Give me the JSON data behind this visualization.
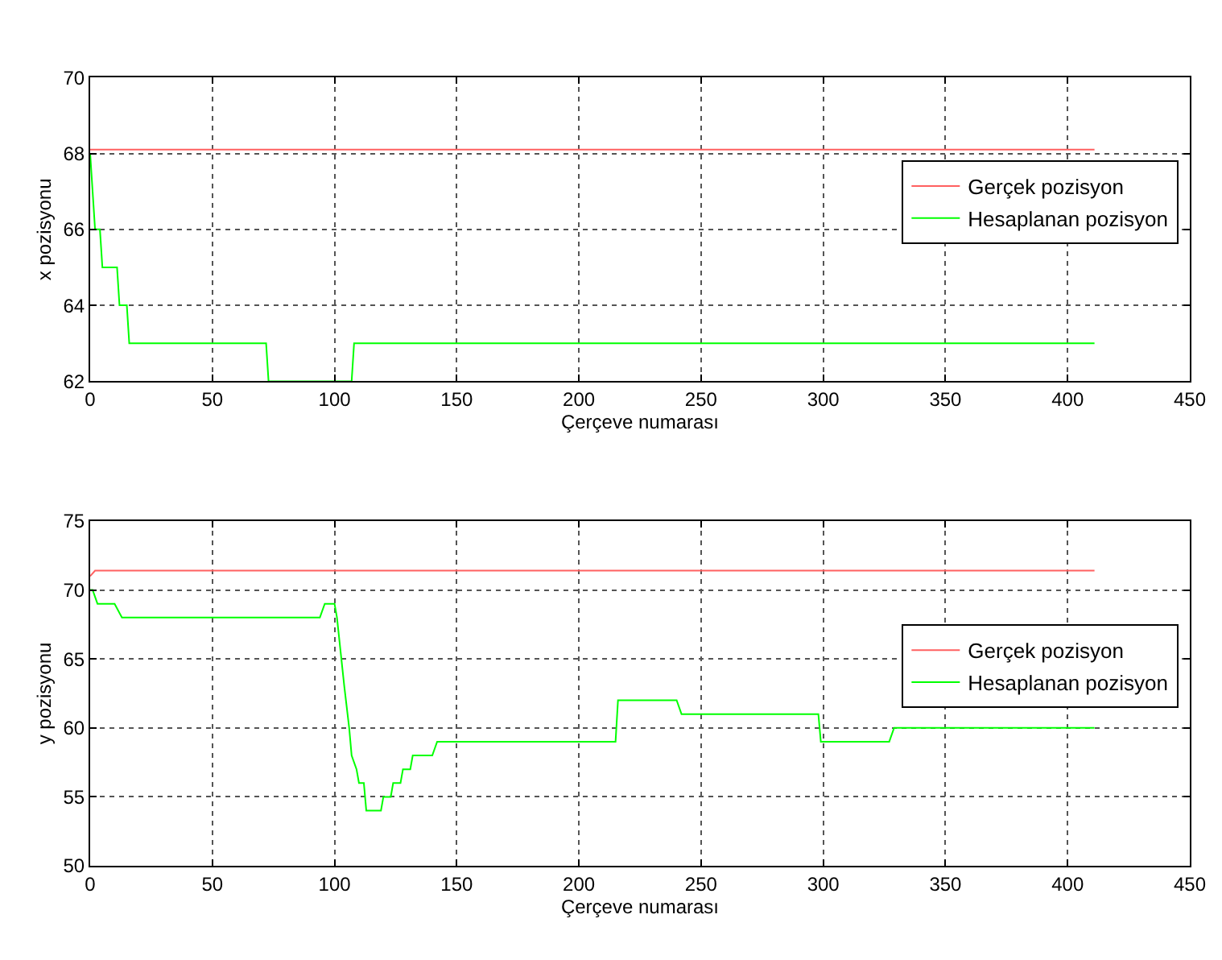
{
  "chart_data": [
    {
      "type": "line",
      "xlabel": "Çerçeve numarası",
      "ylabel": "x pozisyonu",
      "xlim": [
        0,
        450
      ],
      "xticks": [
        0,
        50,
        100,
        150,
        200,
        250,
        300,
        350,
        400,
        450
      ],
      "ylim": [
        62,
        70
      ],
      "yticks": [
        62,
        64,
        66,
        68,
        70
      ],
      "grid": true,
      "legend": "right",
      "line_style": "solid",
      "marker": "none",
      "series": [
        {
          "name": "Gerçek pozisyon",
          "color": "#ff6060",
          "x": [
            0,
            411
          ],
          "values": [
            68.1,
            68.1
          ]
        },
        {
          "name": "Hesaplanan pozisyon",
          "color": "#00ff00",
          "x": [
            0,
            2,
            4,
            5,
            11,
            12,
            15,
            16,
            72,
            73,
            107,
            108,
            411
          ],
          "values": [
            68,
            66,
            66,
            65,
            65,
            64,
            64,
            63,
            63,
            62,
            62,
            63,
            63
          ]
        }
      ]
    },
    {
      "type": "line",
      "xlabel": "Çerçeve numarası",
      "ylabel": "y pozisyonu",
      "xlim": [
        0,
        450
      ],
      "xticks": [
        0,
        50,
        100,
        150,
        200,
        250,
        300,
        350,
        400,
        450
      ],
      "ylim": [
        50,
        75
      ],
      "yticks": [
        50,
        55,
        60,
        65,
        70,
        75
      ],
      "grid": true,
      "legend": "right",
      "line_style": "solid",
      "marker": "none",
      "series": [
        {
          "name": "Gerçek pozisyon",
          "color": "#ff6060",
          "x": [
            0,
            2,
            411
          ],
          "values": [
            71,
            71.4,
            71.4
          ]
        },
        {
          "name": "Hesaplanan pozisyon",
          "color": "#00ff00",
          "x": [
            0,
            1,
            3,
            10,
            13,
            94,
            96,
            100,
            101,
            104,
            106,
            107,
            109,
            110,
            112,
            113,
            119,
            120,
            123,
            124,
            127,
            128,
            131,
            132,
            140,
            142,
            215,
            216,
            240,
            242,
            298,
            299,
            327,
            329,
            411
          ],
          "values": [
            70,
            70,
            69,
            69,
            68,
            68,
            69,
            69,
            68,
            63,
            60,
            58,
            57,
            56,
            56,
            54,
            54,
            55,
            55,
            56,
            56,
            57,
            57,
            58,
            58,
            59,
            59,
            62,
            62,
            61,
            61,
            59,
            59,
            60,
            60
          ]
        }
      ]
    }
  ]
}
